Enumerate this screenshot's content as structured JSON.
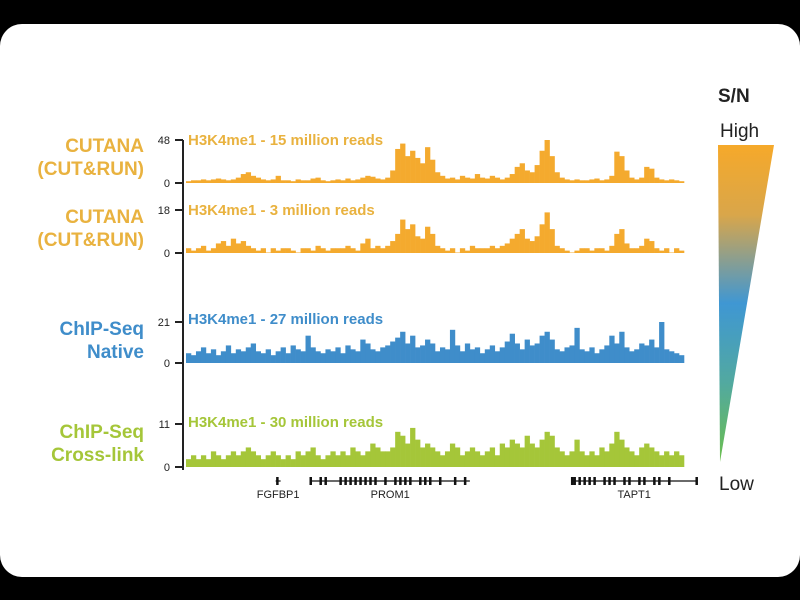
{
  "colors": {
    "orange": "#F4AA2E",
    "orange_label": "#E9B23F",
    "blue": "#3F8DCA",
    "green": "#A5C639",
    "axis": "#222222"
  },
  "legend": {
    "title": "S/N",
    "high": "High",
    "low": "Low"
  },
  "chart_data": {
    "type": "area",
    "x_bins": 100,
    "tracks": [
      {
        "label": "CUTANA\n(CUT&RUN)",
        "title": "H3K4me1 - 15 million reads",
        "ylim": [
          0,
          48
        ],
        "ticks": [
          "48",
          "0"
        ],
        "color": "orange",
        "values": [
          2,
          3,
          3,
          4,
          3,
          4,
          5,
          4,
          3,
          4,
          6,
          10,
          12,
          8,
          6,
          4,
          3,
          4,
          8,
          3,
          3,
          2,
          4,
          3,
          3,
          5,
          6,
          3,
          2,
          3,
          4,
          3,
          5,
          3,
          4,
          6,
          8,
          7,
          5,
          4,
          6,
          14,
          38,
          44,
          30,
          36,
          28,
          22,
          40,
          26,
          12,
          8,
          5,
          6,
          4,
          8,
          6,
          5,
          10,
          6,
          5,
          8,
          6,
          4,
          6,
          10,
          18,
          22,
          14,
          12,
          20,
          36,
          48,
          30,
          12,
          6,
          4,
          3,
          4,
          3,
          3,
          4,
          5,
          3,
          4,
          8,
          35,
          30,
          14,
          6,
          4,
          6,
          18,
          16,
          6,
          4,
          3,
          4,
          3,
          2
        ]
      },
      {
        "label": "CUTANA\n(CUT&RUN)",
        "title": "H3K4me1 - 3 million reads",
        "ylim": [
          0,
          18
        ],
        "ticks": [
          "18",
          "0"
        ],
        "color": "orange",
        "values": [
          2,
          1,
          2,
          3,
          1,
          2,
          4,
          5,
          3,
          6,
          4,
          5,
          3,
          2,
          1,
          2,
          0,
          2,
          1,
          2,
          2,
          1,
          0,
          2,
          2,
          1,
          3,
          2,
          1,
          2,
          2,
          2,
          3,
          2,
          1,
          4,
          6,
          2,
          3,
          2,
          3,
          5,
          8,
          14,
          10,
          12,
          7,
          6,
          11,
          8,
          3,
          2,
          1,
          2,
          0,
          2,
          1,
          3,
          2,
          2,
          2,
          3,
          2,
          3,
          4,
          6,
          8,
          10,
          6,
          5,
          7,
          12,
          17,
          10,
          3,
          2,
          1,
          0,
          1,
          2,
          2,
          1,
          2,
          2,
          1,
          3,
          8,
          10,
          4,
          2,
          2,
          3,
          6,
          5,
          2,
          1,
          2,
          0,
          2,
          1
        ]
      },
      {
        "label": "ChIP-Seq\nNative",
        "title": "H3K4me1 - 27 million reads",
        "ylim": [
          0,
          21
        ],
        "ticks": [
          "21",
          "0"
        ],
        "color": "blue",
        "values": [
          5,
          4,
          6,
          8,
          5,
          7,
          4,
          6,
          9,
          5,
          7,
          6,
          8,
          10,
          6,
          5,
          7,
          4,
          6,
          8,
          5,
          9,
          7,
          6,
          14,
          8,
          6,
          5,
          7,
          6,
          8,
          5,
          9,
          7,
          6,
          12,
          10,
          7,
          6,
          8,
          9,
          11,
          13,
          16,
          10,
          14,
          8,
          9,
          12,
          10,
          6,
          8,
          7,
          17,
          9,
          6,
          10,
          7,
          8,
          5,
          7,
          9,
          6,
          8,
          11,
          15,
          10,
          7,
          12,
          9,
          10,
          14,
          16,
          12,
          7,
          6,
          8,
          9,
          18,
          7,
          6,
          8,
          5,
          7,
          9,
          14,
          10,
          16,
          8,
          6,
          7,
          10,
          9,
          12,
          8,
          21,
          7,
          6,
          5,
          4
        ]
      },
      {
        "label": "ChIP-Seq\nCross-link",
        "title": "H3K4me1 - 30 million reads",
        "ylim": [
          0,
          11
        ],
        "ticks": [
          "11",
          "0"
        ],
        "color": "green",
        "values": [
          2,
          3,
          2,
          3,
          2,
          4,
          3,
          2,
          3,
          4,
          3,
          4,
          5,
          4,
          3,
          2,
          3,
          4,
          3,
          2,
          3,
          2,
          4,
          3,
          4,
          5,
          3,
          2,
          3,
          4,
          3,
          4,
          3,
          5,
          4,
          3,
          4,
          6,
          5,
          4,
          4,
          5,
          9,
          8,
          6,
          10,
          7,
          5,
          6,
          5,
          4,
          3,
          4,
          6,
          5,
          3,
          4,
          5,
          4,
          3,
          4,
          5,
          3,
          6,
          5,
          7,
          6,
          5,
          8,
          6,
          5,
          7,
          9,
          8,
          5,
          4,
          3,
          4,
          7,
          4,
          3,
          4,
          3,
          5,
          4,
          6,
          9,
          7,
          5,
          4,
          3,
          5,
          6,
          5,
          4,
          3,
          4,
          3,
          4,
          3
        ]
      }
    ],
    "genes": [
      {
        "name": "FGFBP1",
        "start": 18,
        "end": 19,
        "exons": [
          18.3
        ]
      },
      {
        "name": "PROM1",
        "start": 25,
        "end": 57,
        "exons": [
          25,
          27,
          28,
          31,
          32,
          33,
          34,
          35,
          36,
          37,
          38,
          40,
          42,
          43,
          44,
          45,
          47,
          48,
          49,
          51,
          54,
          56
        ]
      },
      {
        "name": "TAPT1",
        "start": 77.5,
        "end": 102.5,
        "exons": [
          77.5,
          78,
          79,
          80,
          81,
          82,
          84,
          85,
          86,
          88,
          89,
          91,
          92,
          94,
          95,
          97,
          102.5
        ]
      }
    ]
  }
}
